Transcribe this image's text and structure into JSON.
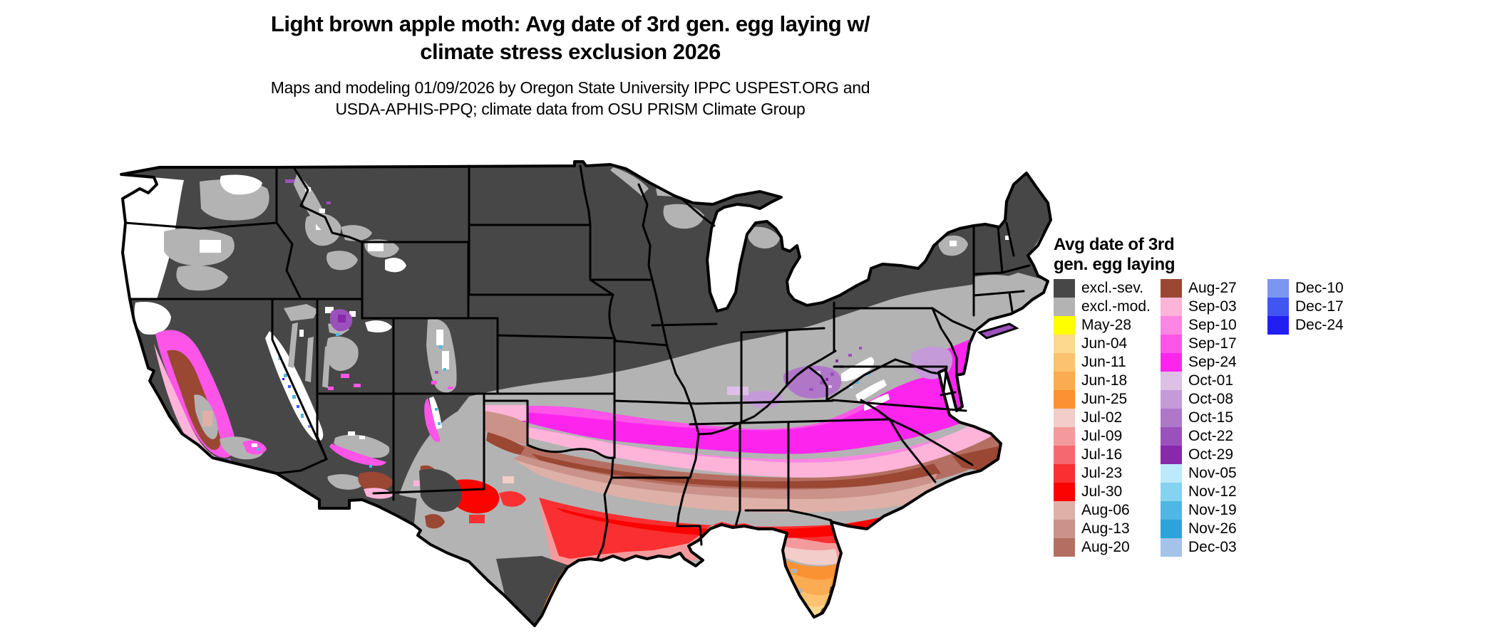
{
  "title": {
    "line1": "Light brown apple moth: Avg date of 3rd gen. egg laying w/",
    "line2": "climate stress exclusion 2026"
  },
  "subtitle": {
    "line1": "Maps and modeling 01/09/2026 by Oregon State University IPPC USPEST.ORG and",
    "line2": "USDA-APHIS-PPQ; climate data from OSU PRISM Climate Group"
  },
  "legend": {
    "title_line1": "Avg date of 3rd",
    "title_line2": "gen. egg laying",
    "columns": [
      [
        {
          "label": "excl.-sev.",
          "color": "#474747"
        },
        {
          "label": "excl.-mod.",
          "color": "#b3b3b3"
        },
        {
          "label": "May-28",
          "color": "#ffff00"
        },
        {
          "label": "Jun-04",
          "color": "#fdd88f"
        },
        {
          "label": "Jun-11",
          "color": "#fdc270"
        },
        {
          "label": "Jun-18",
          "color": "#fbab52"
        },
        {
          "label": "Jun-25",
          "color": "#fa9233"
        },
        {
          "label": "Jul-02",
          "color": "#f2cdc9"
        },
        {
          "label": "Jul-09",
          "color": "#f49a9c"
        },
        {
          "label": "Jul-16",
          "color": "#f5696e"
        },
        {
          "label": "Jul-23",
          "color": "#f92f31"
        },
        {
          "label": "Jul-30",
          "color": "#fb0300"
        },
        {
          "label": "Aug-06",
          "color": "#dfb0a8"
        },
        {
          "label": "Aug-13",
          "color": "#ca9289"
        },
        {
          "label": "Aug-20",
          "color": "#b56f62"
        }
      ],
      [
        {
          "label": "Aug-27",
          "color": "#9a4733"
        },
        {
          "label": "Sep-03",
          "color": "#fdb4d8"
        },
        {
          "label": "Sep-10",
          "color": "#fd85e3"
        },
        {
          "label": "Sep-17",
          "color": "#fd55e8"
        },
        {
          "label": "Sep-24",
          "color": "#fd25ee"
        },
        {
          "label": "Oct-01",
          "color": "#dcc0e6"
        },
        {
          "label": "Oct-08",
          "color": "#c49bd8"
        },
        {
          "label": "Oct-15",
          "color": "#b077c9"
        },
        {
          "label": "Oct-22",
          "color": "#9b51bb"
        },
        {
          "label": "Oct-29",
          "color": "#8829ac"
        },
        {
          "label": "Nov-05",
          "color": "#bce9fc"
        },
        {
          "label": "Nov-12",
          "color": "#85d3f0"
        },
        {
          "label": "Nov-19",
          "color": "#4fb7e3"
        },
        {
          "label": "Nov-26",
          "color": "#2ba3db"
        },
        {
          "label": "Dec-03",
          "color": "#a3c3e8"
        }
      ],
      [
        {
          "label": "Dec-10",
          "color": "#7b96ee"
        },
        {
          "label": "Dec-17",
          "color": "#4156f0"
        },
        {
          "label": "Dec-24",
          "color": "#211ef4"
        }
      ]
    ]
  },
  "chart_data": {
    "type": "choropleth_map",
    "region": "Contiguous United States with state boundaries",
    "variable": "Avg date of 3rd gen. egg laying",
    "classes": [
      "excl.-sev.",
      "excl.-mod.",
      "May-28",
      "Jun-04",
      "Jun-11",
      "Jun-18",
      "Jun-25",
      "Jul-02",
      "Jul-09",
      "Jul-16",
      "Jul-23",
      "Jul-30",
      "Aug-06",
      "Aug-13",
      "Aug-20",
      "Aug-27",
      "Sep-03",
      "Sep-10",
      "Sep-17",
      "Sep-24",
      "Oct-01",
      "Oct-08",
      "Oct-15",
      "Oct-22",
      "Oct-29",
      "Nov-05",
      "Nov-12",
      "Nov-19",
      "Nov-26",
      "Dec-03",
      "Dec-10",
      "Dec-17",
      "Dec-24"
    ],
    "class_colors": [
      "#474747",
      "#b3b3b3",
      "#ffff00",
      "#fdd88f",
      "#fdc270",
      "#fbab52",
      "#fa9233",
      "#f2cdc9",
      "#f49a9c",
      "#f5696e",
      "#f92f31",
      "#fb0300",
      "#dfb0a8",
      "#ca9289",
      "#b56f62",
      "#9a4733",
      "#fdb4d8",
      "#fd85e3",
      "#fd55e8",
      "#fd25ee",
      "#dcc0e6",
      "#c49bd8",
      "#b077c9",
      "#9b51bb",
      "#8829ac",
      "#bce9fc",
      "#85d3f0",
      "#4fb7e3",
      "#2ba3db",
      "#a3c3e8",
      "#7b96ee",
      "#4156f0",
      "#211ef4"
    ],
    "region_summary": {
      "northern_us": "excl.-sev. dark gray (northern plains, upper Midwest, Rockies interior, northern New England)",
      "transition_belt": "excl.-mod. light gray (central Midwest, Ohio Valley margin, most of Texas, Great Basin mountain mottling, southern New England)",
      "mid_belt": "Sep-17/Sep-24 magenta across Kansas-Missouri-Kentucky-Virginia with Oct purple patches over Ohio/West Virginia/Maryland",
      "south_belt": "Sep-03/Sep-10 pink then Aug-27 brown across Oklahoma-Arkansas-Tennessee-Carolinas, Aug-06/13/20 dusty band below",
      "gulf_belt": "Jul-23/Jul-30 red along Gulf states and south Georgia, Jul-09/16 salmon coastal fringe",
      "florida": "Jun-25/Jun-18 orange peninsula, Jun-04/11 light orange far south, May-28 yellow Keys",
      "west": "white NA west of Cascades and along Sierra Nevada; California valley Aug-27 brown ringed by Sep magenta/pink; Nov/Dec cyan-blue specks on high mountain crests"
    }
  }
}
